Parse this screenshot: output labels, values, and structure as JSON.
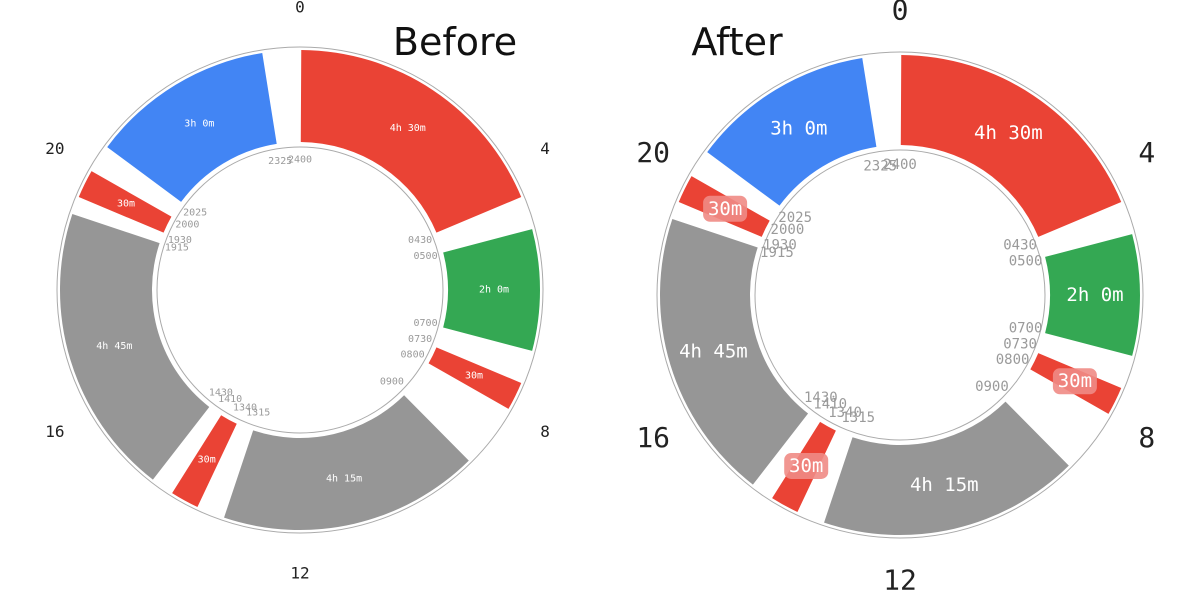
{
  "chart_data": [
    {
      "type": "donut",
      "title": "Before",
      "hour_labels": [
        "0",
        "4",
        "8",
        "12",
        "16",
        "20"
      ],
      "segments": [
        {
          "start": "0000",
          "end": "0430",
          "label": "4h 30m",
          "color": "#ea4335"
        },
        {
          "start": "0500",
          "end": "0700",
          "label": "2h 0m",
          "color": "#34a853"
        },
        {
          "start": "0730",
          "end": "0800",
          "label": "30m",
          "color": "#ea4335"
        },
        {
          "start": "0900",
          "end": "1315",
          "label": "4h 15m",
          "color": "#969696"
        },
        {
          "start": "1340",
          "end": "1410",
          "label": "30m",
          "color": "#ea4335"
        },
        {
          "start": "1430",
          "end": "1915",
          "label": "4h 45m",
          "color": "#969696"
        },
        {
          "start": "1930",
          "end": "2000",
          "label": "30m",
          "color": "#ea4335"
        },
        {
          "start": "2025",
          "end": "2325",
          "label": "3h 0m",
          "color": "#4285f4"
        }
      ],
      "boundary_labels": [
        "2400",
        "2325",
        "0430",
        "0500",
        "0700",
        "0730",
        "0800",
        "0900",
        "1315",
        "1340",
        "1410",
        "1430",
        "1915",
        "1930",
        "2000",
        "2025"
      ]
    },
    {
      "type": "donut",
      "title": "After",
      "hour_labels": [
        "0",
        "4",
        "8",
        "12",
        "16",
        "20"
      ],
      "segments": [
        {
          "start": "0000",
          "end": "0430",
          "label": "4h 30m",
          "color": "#ea4335"
        },
        {
          "start": "0500",
          "end": "0700",
          "label": "2h 0m",
          "color": "#34a853"
        },
        {
          "start": "0730",
          "end": "0800",
          "label": "30m",
          "color": "#ea4335"
        },
        {
          "start": "0900",
          "end": "1315",
          "label": "4h 15m",
          "color": "#969696"
        },
        {
          "start": "1340",
          "end": "1410",
          "label": "30m",
          "color": "#ea4335"
        },
        {
          "start": "1430",
          "end": "1915",
          "label": "4h 45m",
          "color": "#969696"
        },
        {
          "start": "1930",
          "end": "2000",
          "label": "30m",
          "color": "#ea4335"
        },
        {
          "start": "2025",
          "end": "2325",
          "label": "3h 0m",
          "color": "#4285f4"
        }
      ],
      "boundary_labels": [
        "2400",
        "2325",
        "0430",
        "0500",
        "0700",
        "0730",
        "0800",
        "0900",
        "1315",
        "1340",
        "1410",
        "1430",
        "1915",
        "1930",
        "2000",
        "2025"
      ]
    }
  ]
}
